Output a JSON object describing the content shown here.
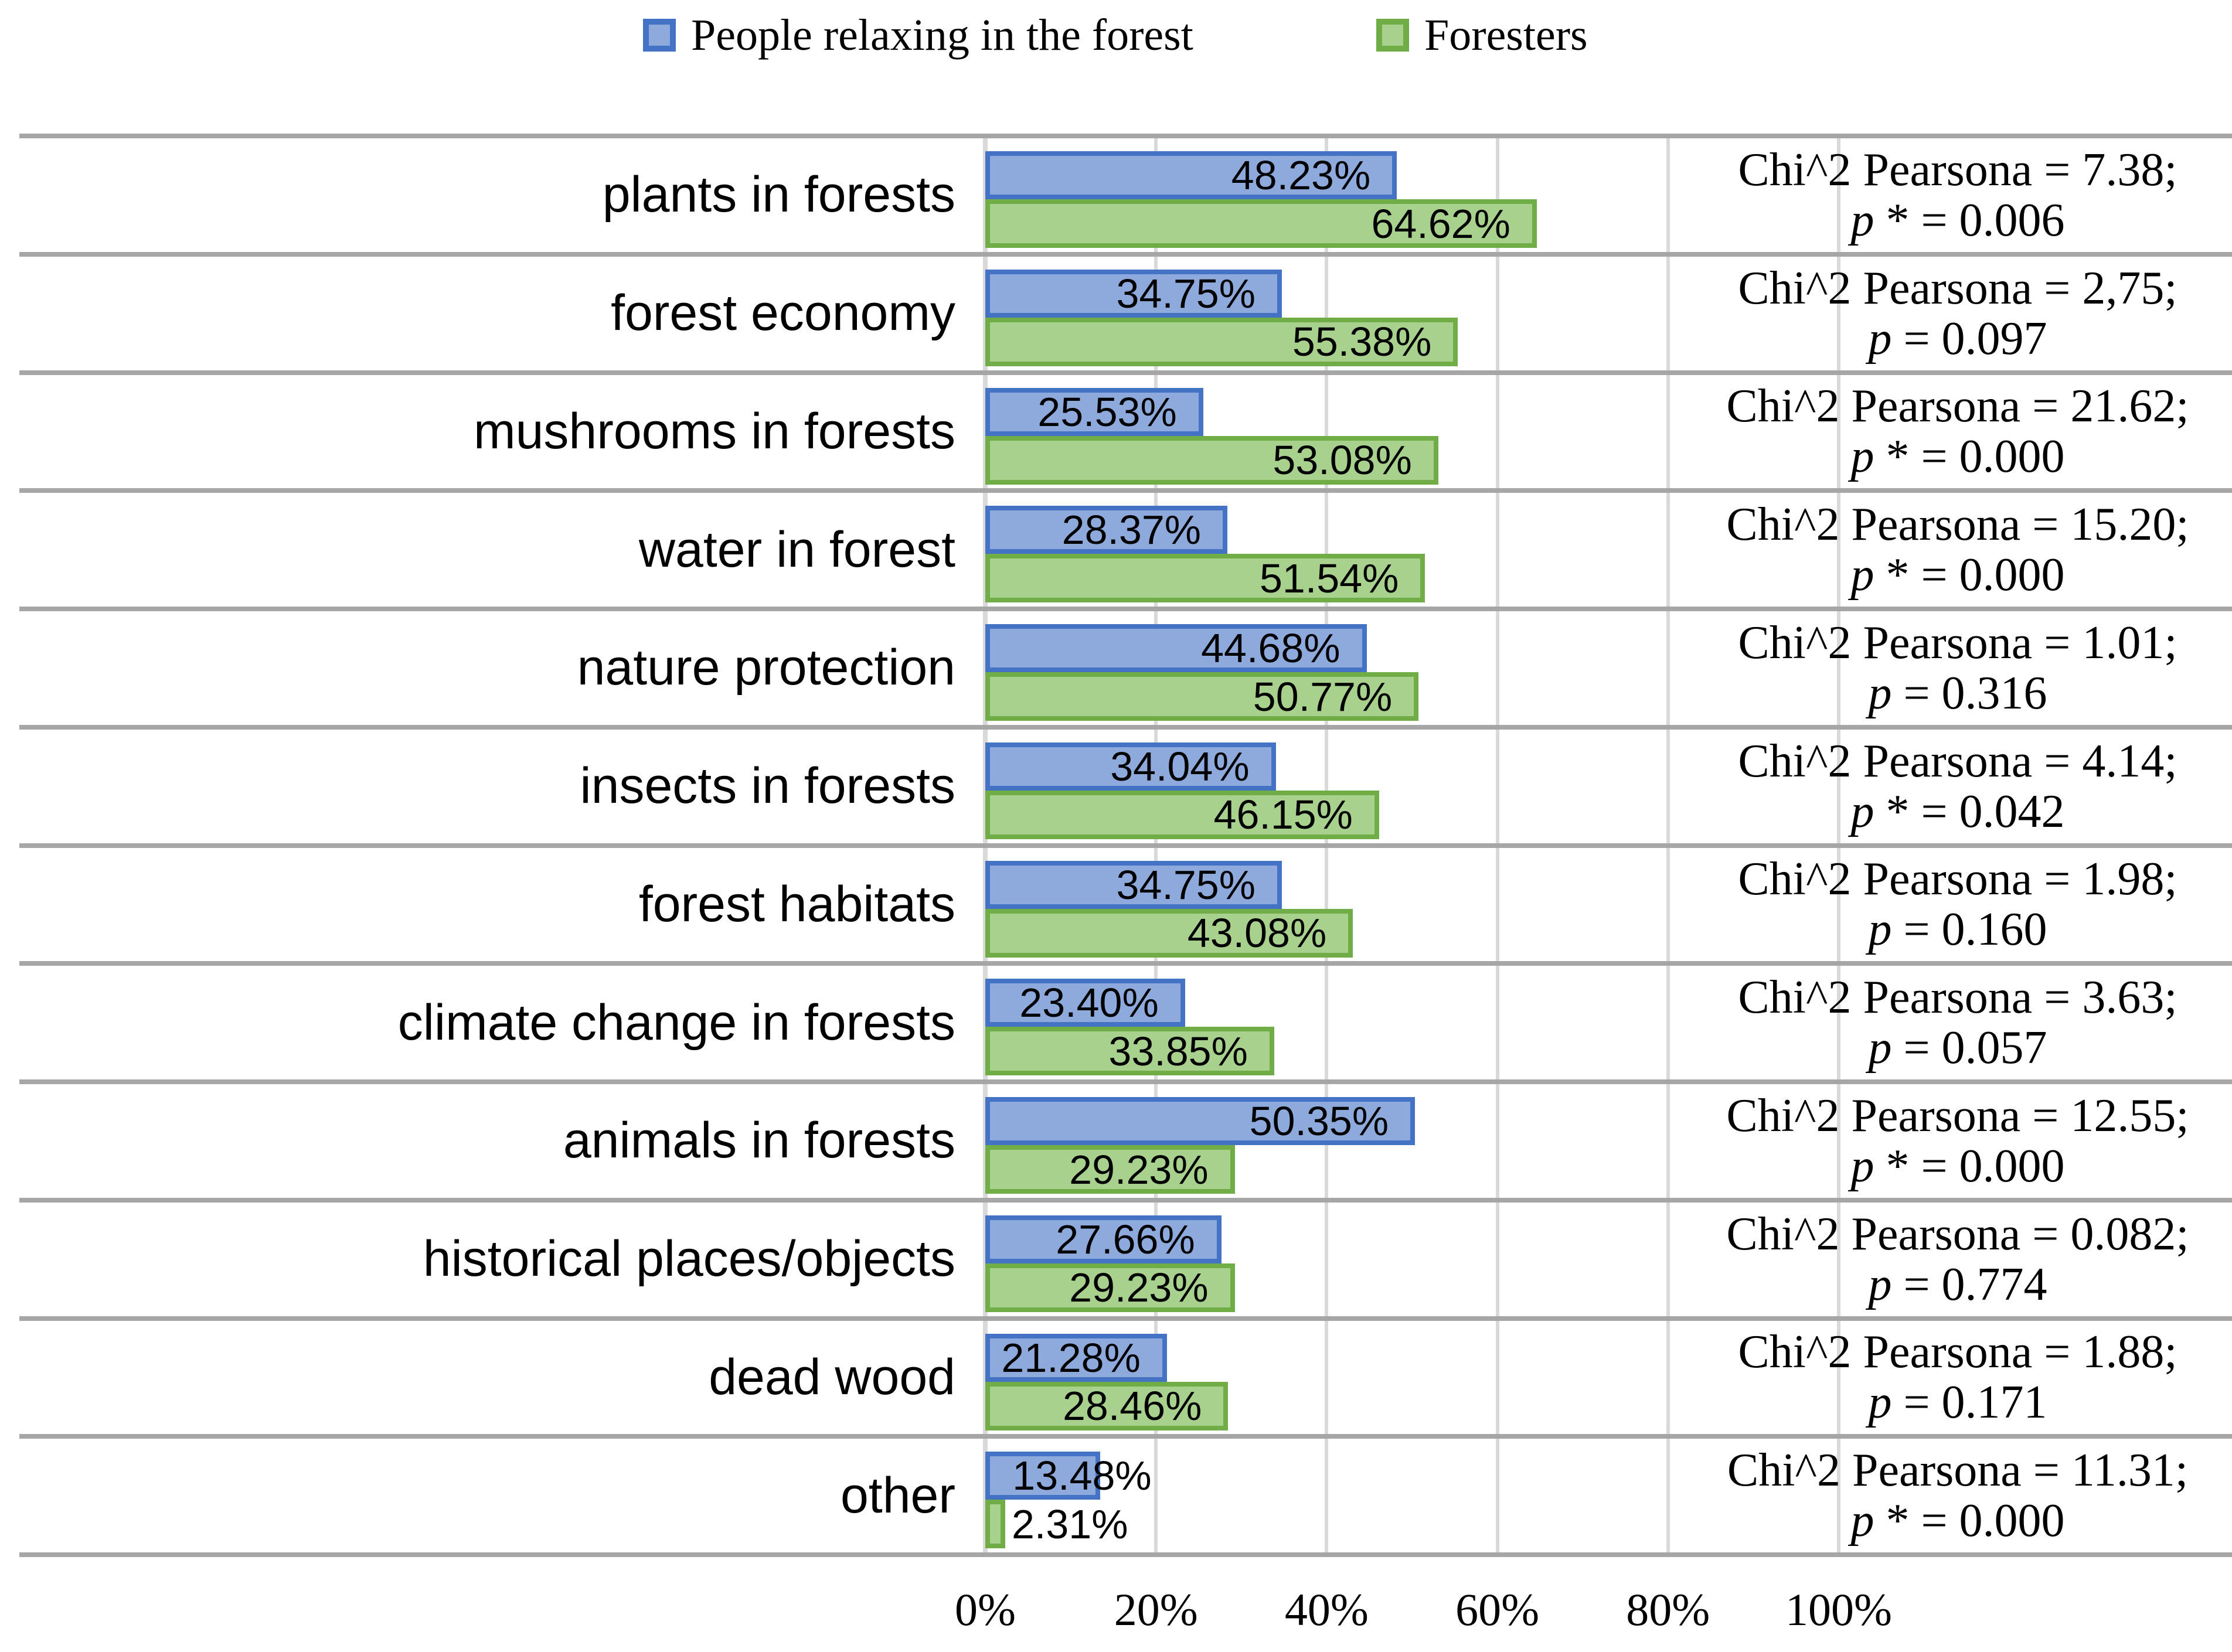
{
  "colors": {
    "people_fill": "#8EA9DB",
    "people_border": "#4472C4",
    "foresters_fill": "#A9D18E",
    "foresters_border": "#70AD47",
    "gridline": "#D9D9D9",
    "separator": "#A6A6A6",
    "text": "#000000"
  },
  "legend": {
    "items": [
      {
        "label": "People relaxing in the forest",
        "series": "people"
      },
      {
        "label": "Foresters",
        "series": "foresters"
      }
    ]
  },
  "x_axis": {
    "ticks": [
      "0%",
      "20%",
      "40%",
      "60%",
      "80%",
      "100%"
    ]
  },
  "chart_data": {
    "type": "bar",
    "orientation": "horizontal",
    "title": "",
    "xlabel": "",
    "ylabel": "",
    "xlim": [
      0,
      100
    ],
    "grid": true,
    "legend_position": "top",
    "categories": [
      "plants in forests",
      "forest economy",
      "mushrooms in forests",
      "water in forest",
      "nature protection",
      "insects in forests",
      "forest habitats",
      "climate change in forests",
      "animals in forests",
      "historical places/objects",
      "dead wood",
      "other"
    ],
    "series": [
      {
        "name": "People relaxing in the forest",
        "values": [
          48.23,
          34.75,
          25.53,
          28.37,
          44.68,
          34.04,
          34.75,
          23.4,
          50.35,
          27.66,
          21.28,
          13.48
        ],
        "labels": [
          "48.23%",
          "34.75%",
          "25.53%",
          "28.37%",
          "44.68%",
          "34.04%",
          "34.75%",
          "23.40%",
          "50.35%",
          "27.66%",
          "21.28%",
          "13.48%"
        ]
      },
      {
        "name": "Foresters",
        "values": [
          64.62,
          55.38,
          53.08,
          51.54,
          50.77,
          46.15,
          43.08,
          33.85,
          29.23,
          29.23,
          28.46,
          2.31
        ],
        "labels": [
          "64.62%",
          "55.38%",
          "53.08%",
          "51.54%",
          "50.77%",
          "46.15%",
          "43.08%",
          "33.85%",
          "29.23%",
          "29.23%",
          "28.46%",
          "2.31%"
        ]
      }
    ],
    "stats": [
      {
        "chi": "Chi^2 Pearsona = 7.38;",
        "p_var": "p",
        "p_rest": " * = 0.006"
      },
      {
        "chi": "Chi^2 Pearsona = 2,75;",
        "p_var": "p",
        "p_rest": " = 0.097"
      },
      {
        "chi": "Chi^2 Pearsona = 21.62;",
        "p_var": "p",
        "p_rest": " * = 0.000"
      },
      {
        "chi": "Chi^2 Pearsona = 15.20;",
        "p_var": "p",
        "p_rest": " * = 0.000"
      },
      {
        "chi": "Chi^2 Pearsona = 1.01;",
        "p_var": "p",
        "p_rest": " = 0.316"
      },
      {
        "chi": "Chi^2 Pearsona = 4.14;",
        "p_var": "p",
        "p_rest": " * = 0.042"
      },
      {
        "chi": "Chi^2 Pearsona = 1.98;",
        "p_var": "p",
        "p_rest": " = 0.160"
      },
      {
        "chi": "Chi^2 Pearsona = 3.63;",
        "p_var": "p",
        "p_rest": " = 0.057"
      },
      {
        "chi": "Chi^2 Pearsona = 12.55;",
        "p_var": "p",
        "p_rest": " * = 0.000"
      },
      {
        "chi": "Chi^2 Pearsona = 0.082;",
        "p_var": "p",
        "p_rest": " = 0.774"
      },
      {
        "chi": "Chi^2 Pearsona = 1.88;",
        "p_var": "p",
        "p_rest": " = 0.171"
      },
      {
        "chi": "Chi^2 Pearsona = 11.31;",
        "p_var": "p",
        "p_rest": " * = 0.000"
      }
    ]
  }
}
